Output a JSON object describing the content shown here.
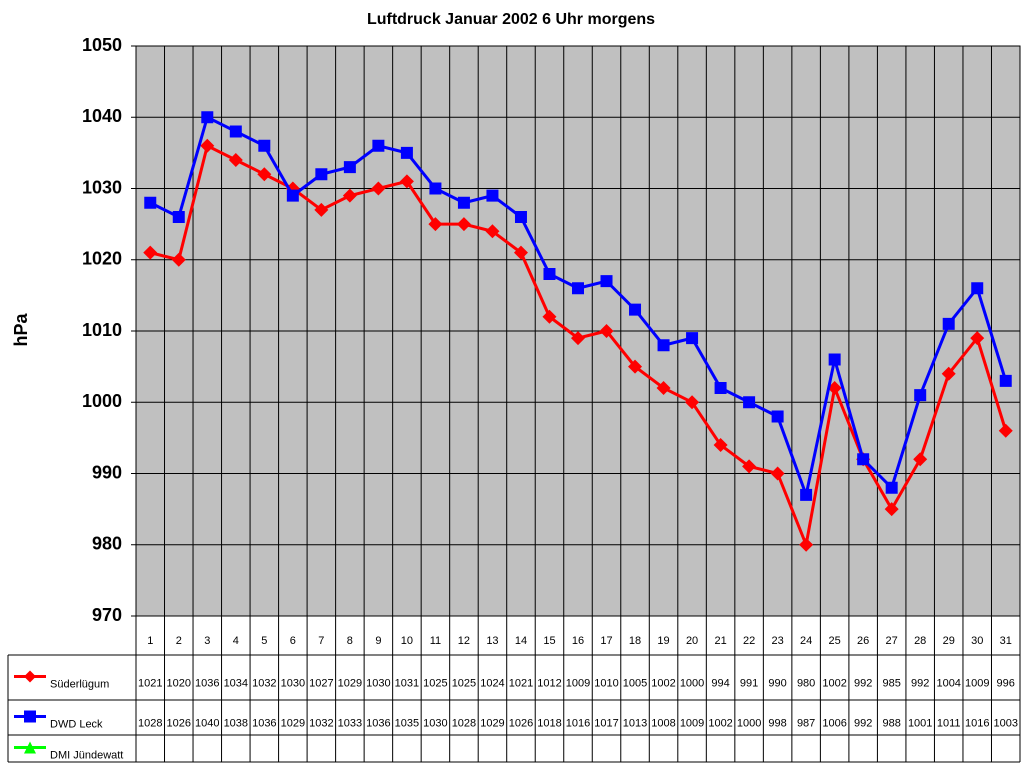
{
  "chart_data": {
    "type": "line",
    "title": "Luftdruck Januar 2002 6 Uhr morgens",
    "y_label": "hPa",
    "categories": [
      "1",
      "2",
      "3",
      "4",
      "5",
      "6",
      "7",
      "8",
      "9",
      "10",
      "11",
      "12",
      "13",
      "14",
      "15",
      "16",
      "17",
      "18",
      "19",
      "20",
      "21",
      "22",
      "23",
      "24",
      "25",
      "26",
      "27",
      "28",
      "29",
      "30",
      "31"
    ],
    "series": [
      {
        "name": "Süderlügum",
        "color": "#ff0000",
        "marker": "diamond",
        "values": [
          1021,
          1020,
          1036,
          1034,
          1032,
          1030,
          1027,
          1029,
          1030,
          1031,
          1025,
          1025,
          1024,
          1021,
          1012,
          1009,
          1010,
          1005,
          1002,
          1000,
          994,
          991,
          990,
          980,
          1002,
          992,
          985,
          992,
          1004,
          1009,
          996
        ]
      },
      {
        "name": "DWD Leck",
        "color": "#0000ff",
        "marker": "square",
        "values": [
          1028,
          1026,
          1040,
          1038,
          1036,
          1029,
          1032,
          1033,
          1036,
          1035,
          1030,
          1028,
          1029,
          1026,
          1018,
          1016,
          1017,
          1013,
          1008,
          1009,
          1002,
          1000,
          998,
          987,
          1006,
          992,
          988,
          1001,
          1011,
          1016,
          1003
        ]
      },
      {
        "name": "DMI Jündewatt",
        "color": "#00ff00",
        "marker": "triangle",
        "values": [
          null,
          null,
          null,
          null,
          null,
          null,
          null,
          null,
          null,
          null,
          null,
          null,
          null,
          null,
          null,
          null,
          null,
          null,
          null,
          null,
          null,
          null,
          null,
          null,
          null,
          null,
          null,
          null,
          null,
          null,
          null
        ]
      }
    ],
    "ylim": [
      970,
      1050
    ],
    "yticks": [
      970,
      980,
      990,
      1000,
      1010,
      1020,
      1030,
      1040,
      1050
    ],
    "grid": true,
    "data_table": true
  }
}
